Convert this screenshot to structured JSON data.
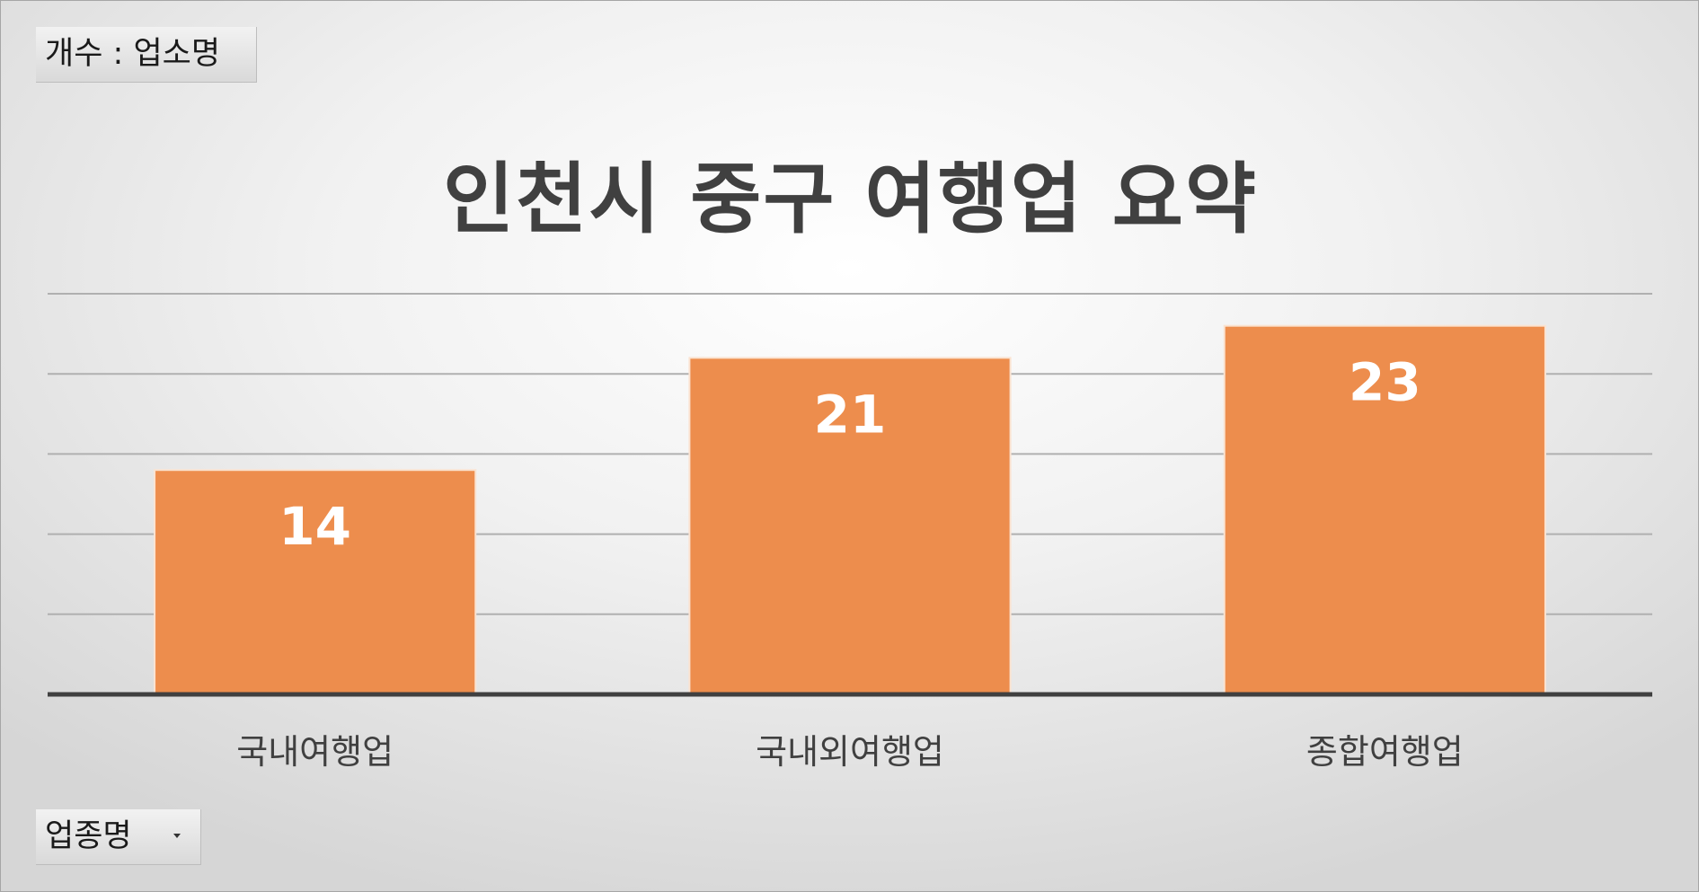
{
  "value_field_button": {
    "label": "개수 : 업소명"
  },
  "axis_field_button": {
    "label": "업종명"
  },
  "chart_data": {
    "type": "bar",
    "title": "인천시 중구 여행업 요약",
    "categories": [
      "국내여행업",
      "국내외여행업",
      "종합여행업"
    ],
    "values": [
      14,
      21,
      23
    ],
    "data_labels": [
      "14",
      "21",
      "23"
    ],
    "ylim": [
      0,
      25
    ],
    "gridlines": true,
    "legend": "none",
    "colors": {
      "bar": "#ed8d4d",
      "bar_border": "#fbe3d1",
      "data_label": "#ffffff",
      "gridline": "#b0b0b0",
      "axis": "#404040",
      "category_label": "#404040"
    }
  }
}
